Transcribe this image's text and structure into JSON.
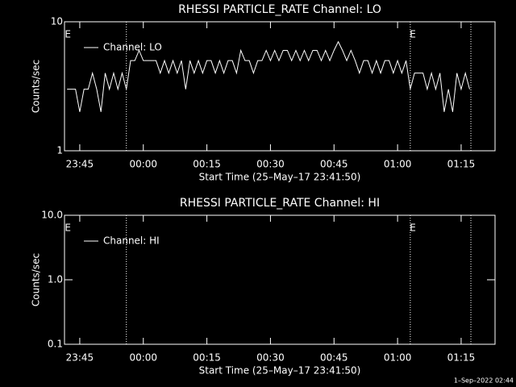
{
  "chart_data": [
    {
      "type": "line",
      "title": "RHESSI PARTICLE_RATE Channel: LO",
      "xlabel": "Start Time (25–May–17 23:41:50)",
      "ylabel": "Counts/sec",
      "log_y": true,
      "ylim": [
        1,
        10
      ],
      "yticks": [
        1,
        10
      ],
      "xlim": [
        1421.4,
        1523
      ],
      "xticks": [
        {
          "value": 1425,
          "label": "23:45"
        },
        {
          "value": 1440,
          "label": "00:00"
        },
        {
          "value": 1455,
          "label": "00:15"
        },
        {
          "value": 1470,
          "label": "00:30"
        },
        {
          "value": 1485,
          "label": "00:45"
        },
        {
          "value": 1500,
          "label": "01:00"
        },
        {
          "value": 1515,
          "label": "01:15"
        }
      ],
      "vlines": [
        1436,
        1503,
        1517.3
      ],
      "annotations": [
        {
          "x": 1422.2,
          "text": "E"
        },
        {
          "x": 1503.6,
          "text": "E"
        }
      ],
      "legend": "upper left",
      "x": [
        1422,
        1423,
        1424,
        1425,
        1426,
        1427,
        1428,
        1429,
        1430,
        1431,
        1432,
        1433,
        1434,
        1435,
        1436,
        1437,
        1438,
        1439,
        1440,
        1441,
        1442,
        1443,
        1444,
        1445,
        1446,
        1447,
        1448,
        1449,
        1450,
        1451,
        1452,
        1453,
        1454,
        1455,
        1456,
        1457,
        1458,
        1459,
        1460,
        1461,
        1462,
        1463,
        1464,
        1465,
        1466,
        1467,
        1468,
        1469,
        1470,
        1471,
        1472,
        1473,
        1474,
        1475,
        1476,
        1477,
        1478,
        1479,
        1480,
        1481,
        1482,
        1483,
        1484,
        1485,
        1486,
        1487,
        1488,
        1489,
        1490,
        1491,
        1492,
        1493,
        1494,
        1495,
        1496,
        1497,
        1498,
        1499,
        1500,
        1501,
        1502,
        1503,
        1504,
        1505,
        1506,
        1507,
        1508,
        1509,
        1510,
        1511,
        1512,
        1513,
        1514,
        1515,
        1516,
        1517
      ],
      "series": [
        {
          "name": "Channel: LO",
          "color": "#ffffff",
          "values": [
            3,
            3,
            3,
            2,
            3,
            3,
            4,
            3,
            2,
            4,
            3,
            4,
            3,
            4,
            3,
            5,
            5,
            6,
            5,
            5,
            5,
            5,
            4,
            5,
            4,
            5,
            4,
            5,
            3,
            5,
            4,
            5,
            4,
            5,
            5,
            4,
            5,
            4,
            5,
            5,
            4,
            6,
            5,
            5,
            4,
            5,
            5,
            6,
            5,
            6,
            5,
            6,
            6,
            5,
            6,
            5,
            6,
            5,
            6,
            6,
            5,
            6,
            5,
            6,
            7,
            6,
            5,
            6,
            5,
            4,
            5,
            5,
            4,
            5,
            4,
            5,
            5,
            4,
            5,
            4,
            5,
            3,
            4,
            4,
            4,
            3,
            4,
            3,
            4,
            2,
            3,
            2,
            4,
            3,
            4,
            3
          ]
        }
      ]
    },
    {
      "type": "line",
      "title": "RHESSI PARTICLE_RATE Channel: HI",
      "xlabel": "Start Time (25–May–17 23:41:50)",
      "ylabel": "Counts/sec",
      "log_y": true,
      "ylim": [
        0.1,
        10
      ],
      "yticks": [
        0.1,
        {
          "value": 1,
          "label": "1.0"
        },
        {
          "value": 10,
          "label": "10.0"
        }
      ],
      "xlim": [
        1421.4,
        1523
      ],
      "xticks": [
        {
          "value": 1425,
          "label": "23:45"
        },
        {
          "value": 1440,
          "label": "00:00"
        },
        {
          "value": 1455,
          "label": "00:15"
        },
        {
          "value": 1470,
          "label": "00:30"
        },
        {
          "value": 1485,
          "label": "00:45"
        },
        {
          "value": 1500,
          "label": "01:00"
        },
        {
          "value": 1515,
          "label": "01:15"
        }
      ],
      "vlines": [
        1436,
        1503,
        1517.3
      ],
      "annotations": [
        {
          "x": 1422.2,
          "text": "E"
        },
        {
          "x": 1503.6,
          "text": "E"
        }
      ],
      "legend": "upper left",
      "x": [],
      "series": [
        {
          "name": "Channel: HI",
          "color": "#ffffff",
          "values": []
        }
      ]
    }
  ],
  "timestamp": "1–Sep–2022 02:44"
}
